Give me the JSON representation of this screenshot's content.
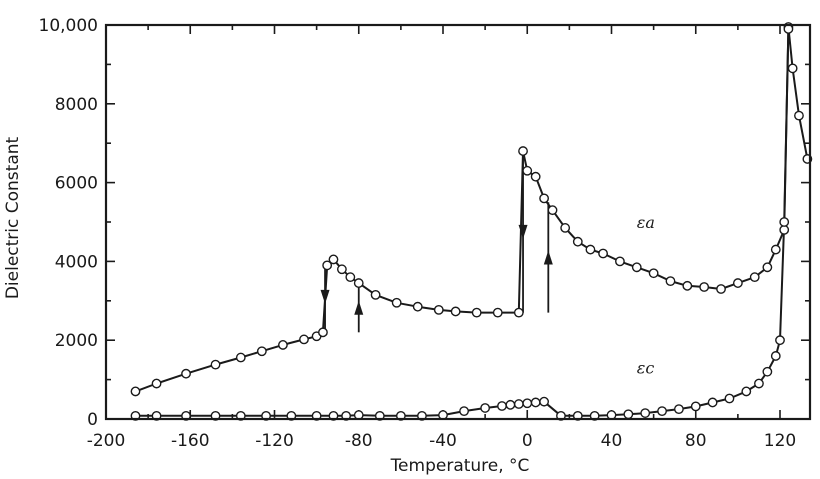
{
  "chart_data": {
    "type": "line",
    "title": "",
    "xlabel": "Temperature, °C",
    "ylabel": "Dielectric Constant",
    "xlim": [
      -200,
      135
    ],
    "ylim": [
      0,
      10000
    ],
    "x_tick_values": [
      -200,
      -160,
      -120,
      -80,
      -40,
      0,
      40,
      80,
      120
    ],
    "x_tick_labels": [
      "-200",
      "-160",
      "-120",
      "-80",
      "-40",
      "0",
      "40",
      "80",
      "120"
    ],
    "y_tick_values": [
      0,
      2000,
      4000,
      6000,
      8000,
      10000
    ],
    "y_tick_labels": [
      "0",
      "2000",
      "4000",
      "6000",
      "8000",
      "10,000"
    ],
    "grid": false,
    "series": [
      {
        "name": "εa",
        "x": [
          -186,
          -176,
          -162,
          -148,
          -136,
          -126,
          -116,
          -106,
          -100,
          -97,
          -95,
          -92,
          -88,
          -84,
          -80,
          -72,
          -62,
          -52,
          -42,
          -34,
          -24,
          -14,
          -4,
          -2,
          0,
          4,
          8,
          12,
          18,
          24,
          30,
          36,
          44,
          52,
          60,
          68,
          76,
          84,
          92,
          100,
          108,
          114,
          118,
          122,
          124,
          126,
          129,
          133
        ],
        "y": [
          700,
          900,
          1150,
          1380,
          1560,
          1720,
          1880,
          2020,
          2100,
          2200,
          3900,
          4050,
          3800,
          3600,
          3450,
          3150,
          2950,
          2850,
          2770,
          2730,
          2700,
          2700,
          2700,
          6800,
          6300,
          6150,
          5600,
          5300,
          4850,
          4500,
          4300,
          4200,
          4000,
          3850,
          3700,
          3500,
          3380,
          3350,
          3300,
          3450,
          3600,
          3850,
          4300,
          4800,
          9950,
          8900,
          7700,
          6600
        ]
      },
      {
        "name": "εc",
        "x": [
          -186,
          -176,
          -162,
          -148,
          -136,
          -124,
          -112,
          -100,
          -92,
          -86,
          -80,
          -70,
          -60,
          -50,
          -40,
          -30,
          -20,
          -12,
          -8,
          -4,
          0,
          4,
          8,
          16,
          24,
          32,
          40,
          48,
          56,
          64,
          72,
          80,
          88,
          96,
          104,
          110,
          114,
          118,
          120,
          122,
          124
        ],
        "y": [
          80,
          80,
          80,
          80,
          80,
          80,
          80,
          80,
          80,
          80,
          100,
          80,
          80,
          80,
          100,
          200,
          280,
          330,
          360,
          380,
          400,
          420,
          440,
          80,
          80,
          80,
          100,
          120,
          150,
          200,
          250,
          320,
          420,
          520,
          700,
          900,
          1200,
          1600,
          2000,
          5000,
          9900
        ]
      }
    ],
    "annotations": [
      {
        "text": "εa",
        "x": 52,
        "y": 4850
      },
      {
        "text": "εc",
        "x": 52,
        "y": 1150
      }
    ],
    "hysteresis_arrows": [
      {
        "x": -96,
        "from_y": 4000,
        "to_y": 2200,
        "direction": "down"
      },
      {
        "x": -80,
        "from_y": 2200,
        "to_y": 3450,
        "direction": "up"
      },
      {
        "x": -2,
        "from_y": 6800,
        "to_y": 2700,
        "direction": "down"
      },
      {
        "x": 10,
        "from_y": 2700,
        "to_y": 5500,
        "direction": "up"
      }
    ]
  }
}
